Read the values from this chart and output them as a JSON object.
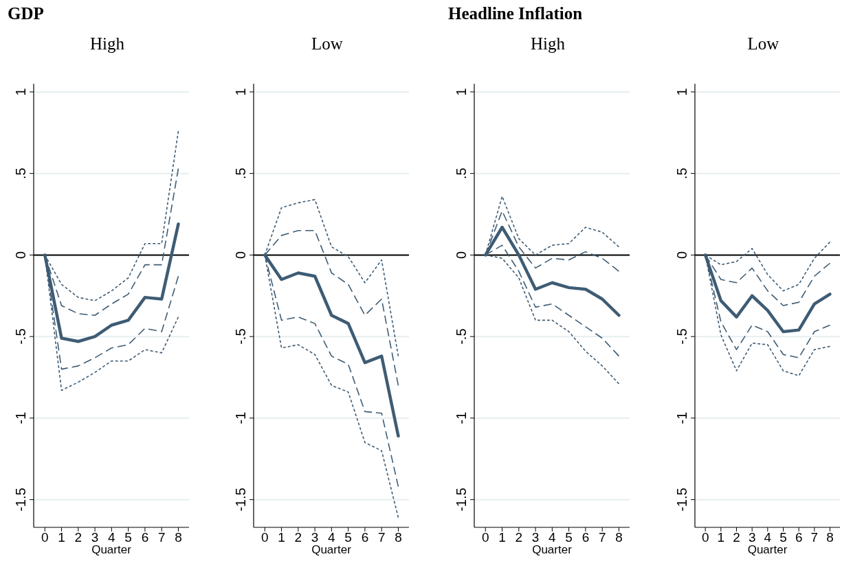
{
  "chart_data": [
    {
      "type": "line",
      "title": "GDP",
      "subtitle": "High",
      "xlabel": "Quarter",
      "x": [
        0,
        1,
        2,
        3,
        4,
        5,
        6,
        7,
        8
      ],
      "xlim": [
        -0.67,
        8.64
      ],
      "xticks": [
        0,
        1,
        2,
        3,
        4,
        5,
        6,
        7,
        8
      ],
      "ylim": [
        -1.67,
        1.05
      ],
      "yticks": [
        1,
        {
          "value": 0.5,
          "label": ".5"
        },
        0,
        {
          "value": -0.5,
          "label": "-.5"
        },
        -1,
        {
          "value": -1.5,
          "label": "-1.5"
        }
      ],
      "grid": "y",
      "ref_lines": [
        {
          "axis": "y",
          "value": 0,
          "color": "#000000"
        }
      ],
      "series": [
        {
          "color": "#3e5c74",
          "line_style": "dotted",
          "values": [
            0,
            -0.18,
            -0.26,
            -0.28,
            -0.22,
            -0.14,
            0.07,
            0.07,
            0.76
          ]
        },
        {
          "color": "#3e5c74",
          "line_style": "dashed",
          "values": [
            0,
            -0.31,
            -0.36,
            -0.37,
            -0.3,
            -0.24,
            -0.06,
            -0.06,
            0.53
          ]
        },
        {
          "color": "#3e5c74",
          "line_style": "solid",
          "values": [
            0,
            -0.51,
            -0.53,
            -0.5,
            -0.43,
            -0.4,
            -0.26,
            -0.27,
            0.19
          ]
        },
        {
          "color": "#3e5c74",
          "line_style": "dashed",
          "values": [
            0,
            -0.7,
            -0.68,
            -0.63,
            -0.57,
            -0.55,
            -0.45,
            -0.47,
            -0.13
          ]
        },
        {
          "color": "#3e5c74",
          "line_style": "dotted",
          "values": [
            0,
            -0.83,
            -0.78,
            -0.72,
            -0.65,
            -0.65,
            -0.58,
            -0.6,
            -0.38
          ]
        }
      ]
    },
    {
      "type": "line",
      "subtitle": "Low",
      "xlabel": "Quarter",
      "x": [
        0,
        1,
        2,
        3,
        4,
        5,
        6,
        7,
        8
      ],
      "xlim": [
        -0.67,
        8.64
      ],
      "xticks": [
        0,
        1,
        2,
        3,
        4,
        5,
        6,
        7,
        8
      ],
      "ylim": [
        -1.67,
        1.05
      ],
      "yticks": [
        1,
        {
          "value": 0.5,
          "label": ".5"
        },
        0,
        {
          "value": -0.5,
          "label": "-.5"
        },
        -1,
        {
          "value": -1.5,
          "label": "-1.5"
        }
      ],
      "grid": "y",
      "ref_lines": [
        {
          "axis": "y",
          "value": 0,
          "color": "#000000"
        }
      ],
      "series": [
        {
          "color": "#3e5c74",
          "line_style": "dotted",
          "values": [
            0,
            0.29,
            0.32,
            0.34,
            0.05,
            -0.01,
            -0.17,
            -0.03,
            -0.62
          ]
        },
        {
          "color": "#3e5c74",
          "line_style": "dashed",
          "values": [
            0,
            0.12,
            0.15,
            0.15,
            -0.11,
            -0.18,
            -0.37,
            -0.27,
            -0.8
          ]
        },
        {
          "color": "#3e5c74",
          "line_style": "solid",
          "values": [
            0,
            -0.15,
            -0.11,
            -0.13,
            -0.37,
            -0.42,
            -0.66,
            -0.62,
            -1.11
          ]
        },
        {
          "color": "#3e5c74",
          "line_style": "dashed",
          "values": [
            0,
            -0.4,
            -0.38,
            -0.42,
            -0.62,
            -0.67,
            -0.96,
            -0.97,
            -1.42
          ]
        },
        {
          "color": "#3e5c74",
          "line_style": "dotted",
          "values": [
            0,
            -0.57,
            -0.55,
            -0.61,
            -0.8,
            -0.84,
            -1.15,
            -1.2,
            -1.61
          ]
        }
      ]
    },
    {
      "type": "line",
      "title": "Headline Inflation",
      "subtitle": "High",
      "xlabel": "Quarter",
      "x": [
        0,
        1,
        2,
        3,
        4,
        5,
        6,
        7,
        8
      ],
      "xlim": [
        -0.67,
        8.64
      ],
      "xticks": [
        0,
        1,
        2,
        3,
        4,
        5,
        6,
        7,
        8
      ],
      "ylim": [
        -1.67,
        1.05
      ],
      "yticks": [
        1,
        {
          "value": 0.5,
          "label": ".5"
        },
        0,
        {
          "value": -0.5,
          "label": "-.5"
        },
        -1,
        {
          "value": -1.5,
          "label": "-1.5"
        }
      ],
      "grid": "y",
      "ref_lines": [
        {
          "axis": "y",
          "value": 0,
          "color": "#000000"
        }
      ],
      "series": [
        {
          "color": "#3e5c74",
          "line_style": "dotted",
          "values": [
            0,
            0.36,
            0.1,
            0.0,
            0.06,
            0.07,
            0.17,
            0.14,
            0.05
          ]
        },
        {
          "color": "#3e5c74",
          "line_style": "dashed",
          "values": [
            0,
            0.27,
            0.05,
            -0.08,
            -0.02,
            -0.03,
            0.02,
            -0.02,
            -0.1
          ]
        },
        {
          "color": "#3e5c74",
          "line_style": "solid",
          "values": [
            0,
            0.17,
            0.0,
            -0.21,
            -0.17,
            -0.2,
            -0.21,
            -0.27,
            -0.37
          ]
        },
        {
          "color": "#3e5c74",
          "line_style": "dashed",
          "values": [
            0,
            0.06,
            -0.1,
            -0.32,
            -0.3,
            -0.37,
            -0.44,
            -0.51,
            -0.62
          ]
        },
        {
          "color": "#3e5c74",
          "line_style": "dotted",
          "values": [
            0,
            -0.02,
            -0.14,
            -0.4,
            -0.4,
            -0.47,
            -0.59,
            -0.68,
            -0.79
          ]
        }
      ]
    },
    {
      "type": "line",
      "subtitle": "Low",
      "xlabel": "Quarter",
      "x": [
        0,
        1,
        2,
        3,
        4,
        5,
        6,
        7,
        8
      ],
      "xlim": [
        -0.67,
        8.64
      ],
      "xticks": [
        0,
        1,
        2,
        3,
        4,
        5,
        6,
        7,
        8
      ],
      "ylim": [
        -1.67,
        1.05
      ],
      "yticks": [
        1,
        {
          "value": 0.5,
          "label": ".5"
        },
        0,
        {
          "value": -0.5,
          "label": "-.5"
        },
        -1,
        {
          "value": -1.5,
          "label": "-1.5"
        }
      ],
      "grid": "y",
      "ref_lines": [
        {
          "axis": "y",
          "value": 0,
          "color": "#000000"
        }
      ],
      "series": [
        {
          "color": "#3e5c74",
          "line_style": "dotted",
          "values": [
            0,
            -0.06,
            -0.04,
            0.04,
            -0.12,
            -0.22,
            -0.18,
            -0.02,
            0.08
          ]
        },
        {
          "color": "#3e5c74",
          "line_style": "dashed",
          "values": [
            0,
            -0.15,
            -0.17,
            -0.08,
            -0.22,
            -0.31,
            -0.29,
            -0.13,
            -0.05
          ]
        },
        {
          "color": "#3e5c74",
          "line_style": "solid",
          "values": [
            0,
            -0.28,
            -0.38,
            -0.25,
            -0.34,
            -0.47,
            -0.46,
            -0.3,
            -0.24
          ]
        },
        {
          "color": "#3e5c74",
          "line_style": "dashed",
          "values": [
            0,
            -0.41,
            -0.58,
            -0.43,
            -0.47,
            -0.61,
            -0.63,
            -0.47,
            -0.43
          ]
        },
        {
          "color": "#3e5c74",
          "line_style": "dotted",
          "values": [
            0,
            -0.49,
            -0.71,
            -0.54,
            -0.55,
            -0.71,
            -0.74,
            -0.58,
            -0.56
          ]
        }
      ]
    }
  ]
}
